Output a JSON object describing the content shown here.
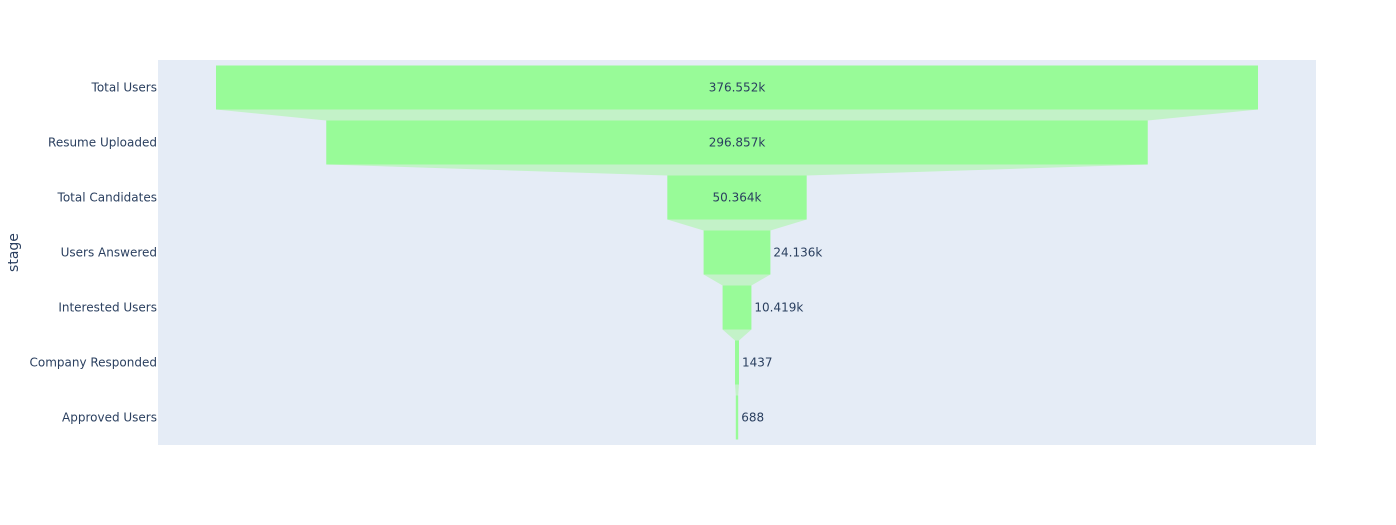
{
  "chart_data": {
    "type": "funnel",
    "ylabel": "stage",
    "categories": [
      "Total Users",
      "Resume Uploaded",
      "Total Candidates",
      "Users Answered",
      "Interested Users",
      "Company Responded",
      "Approved Users"
    ],
    "values": [
      376552,
      296857,
      50364,
      24136,
      10419,
      1437,
      688
    ],
    "value_labels": [
      "376.552k",
      "296.857k",
      "50.364k",
      "24.136k",
      "10.419k",
      "1437",
      "688"
    ],
    "colors": {
      "bar": "#98fb98",
      "connector": "#c3f2c8",
      "plot_background": "#e5ecf6",
      "paper_background": "#ffffff",
      "text": "#2a3f5f"
    }
  }
}
